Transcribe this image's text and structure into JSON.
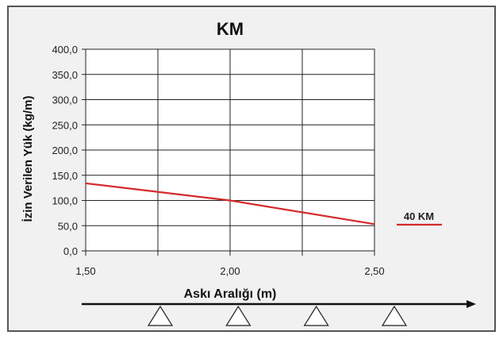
{
  "chart_data": {
    "type": "line",
    "title": "KM",
    "xlabel": "Askı Aralığı (m)",
    "ylabel": "İzin Verilen Yük (kg/m)",
    "x_ticks": [
      "1,50",
      "2,00",
      "2,50"
    ],
    "x_tick_values": [
      1.5,
      2.0,
      2.5
    ],
    "y_ticks": [
      "0,0",
      "50,0",
      "100,0",
      "150,0",
      "200,0",
      "250,0",
      "300,0",
      "350,0",
      "400,0"
    ],
    "y_tick_values": [
      0,
      50,
      100,
      150,
      200,
      250,
      300,
      350,
      400
    ],
    "xlim": [
      1.5,
      2.5
    ],
    "ylim": [
      0,
      400
    ],
    "grid": true,
    "legend_position": "right",
    "series": [
      {
        "name": "40 KM",
        "color": "#d42a2a",
        "x": [
          1.5,
          2.0,
          2.5
        ],
        "y": [
          134,
          100,
          53
        ]
      }
    ],
    "support_count": 4,
    "axis_arrow": true
  }
}
